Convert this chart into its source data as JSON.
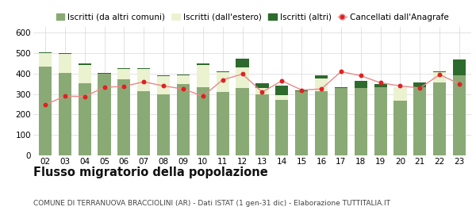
{
  "years": [
    "02",
    "03",
    "04",
    "05",
    "06",
    "07",
    "08",
    "09",
    "10",
    "11",
    "12",
    "13",
    "14",
    "15",
    "16",
    "17",
    "18",
    "19",
    "20",
    "21",
    "22",
    "23"
  ],
  "iscritti_comuni": [
    433,
    402,
    352,
    401,
    372,
    315,
    300,
    350,
    332,
    310,
    330,
    300,
    270,
    315,
    315,
    330,
    328,
    333,
    267,
    335,
    355,
    390
  ],
  "iscritti_estero": [
    68,
    95,
    92,
    0,
    50,
    108,
    88,
    42,
    112,
    98,
    100,
    30,
    25,
    0,
    60,
    0,
    0,
    0,
    65,
    0,
    52,
    0
  ],
  "iscritti_altri": [
    5,
    5,
    5,
    4,
    4,
    4,
    5,
    4,
    5,
    5,
    42,
    22,
    48,
    5,
    18,
    5,
    35,
    18,
    2,
    20,
    5,
    78
  ],
  "cancellati": [
    248,
    290,
    288,
    333,
    338,
    360,
    340,
    325,
    290,
    370,
    398,
    310,
    365,
    320,
    325,
    410,
    390,
    355,
    340,
    330,
    395,
    350
  ],
  "color_comuni": "#8aaa75",
  "color_estero": "#eaf2d0",
  "color_altri": "#2d6a2d",
  "color_cancellati": "#dd2222",
  "color_line": "#e88888",
  "bar_edge_color": "none",
  "grid_color": "#d8d8d8",
  "background_color": "#ffffff",
  "ylim": [
    0,
    630
  ],
  "yticks": [
    0,
    100,
    200,
    300,
    400,
    500,
    600
  ],
  "title": "Flusso migratorio della popolazione",
  "subtitle": "COMUNE DI TERRANUOVA BRACCIOLINI (AR) - Dati ISTAT (1 gen-31 dic) - Elaborazione TUTTITALIA.IT",
  "legend_labels": [
    "Iscritti (da altri comuni)",
    "Iscritti (dall'estero)",
    "Iscritti (altri)",
    "Cancellati dall'Anagrafe"
  ],
  "title_fontsize": 10.5,
  "subtitle_fontsize": 6.5,
  "legend_fontsize": 7.5,
  "tick_fontsize": 7.5
}
